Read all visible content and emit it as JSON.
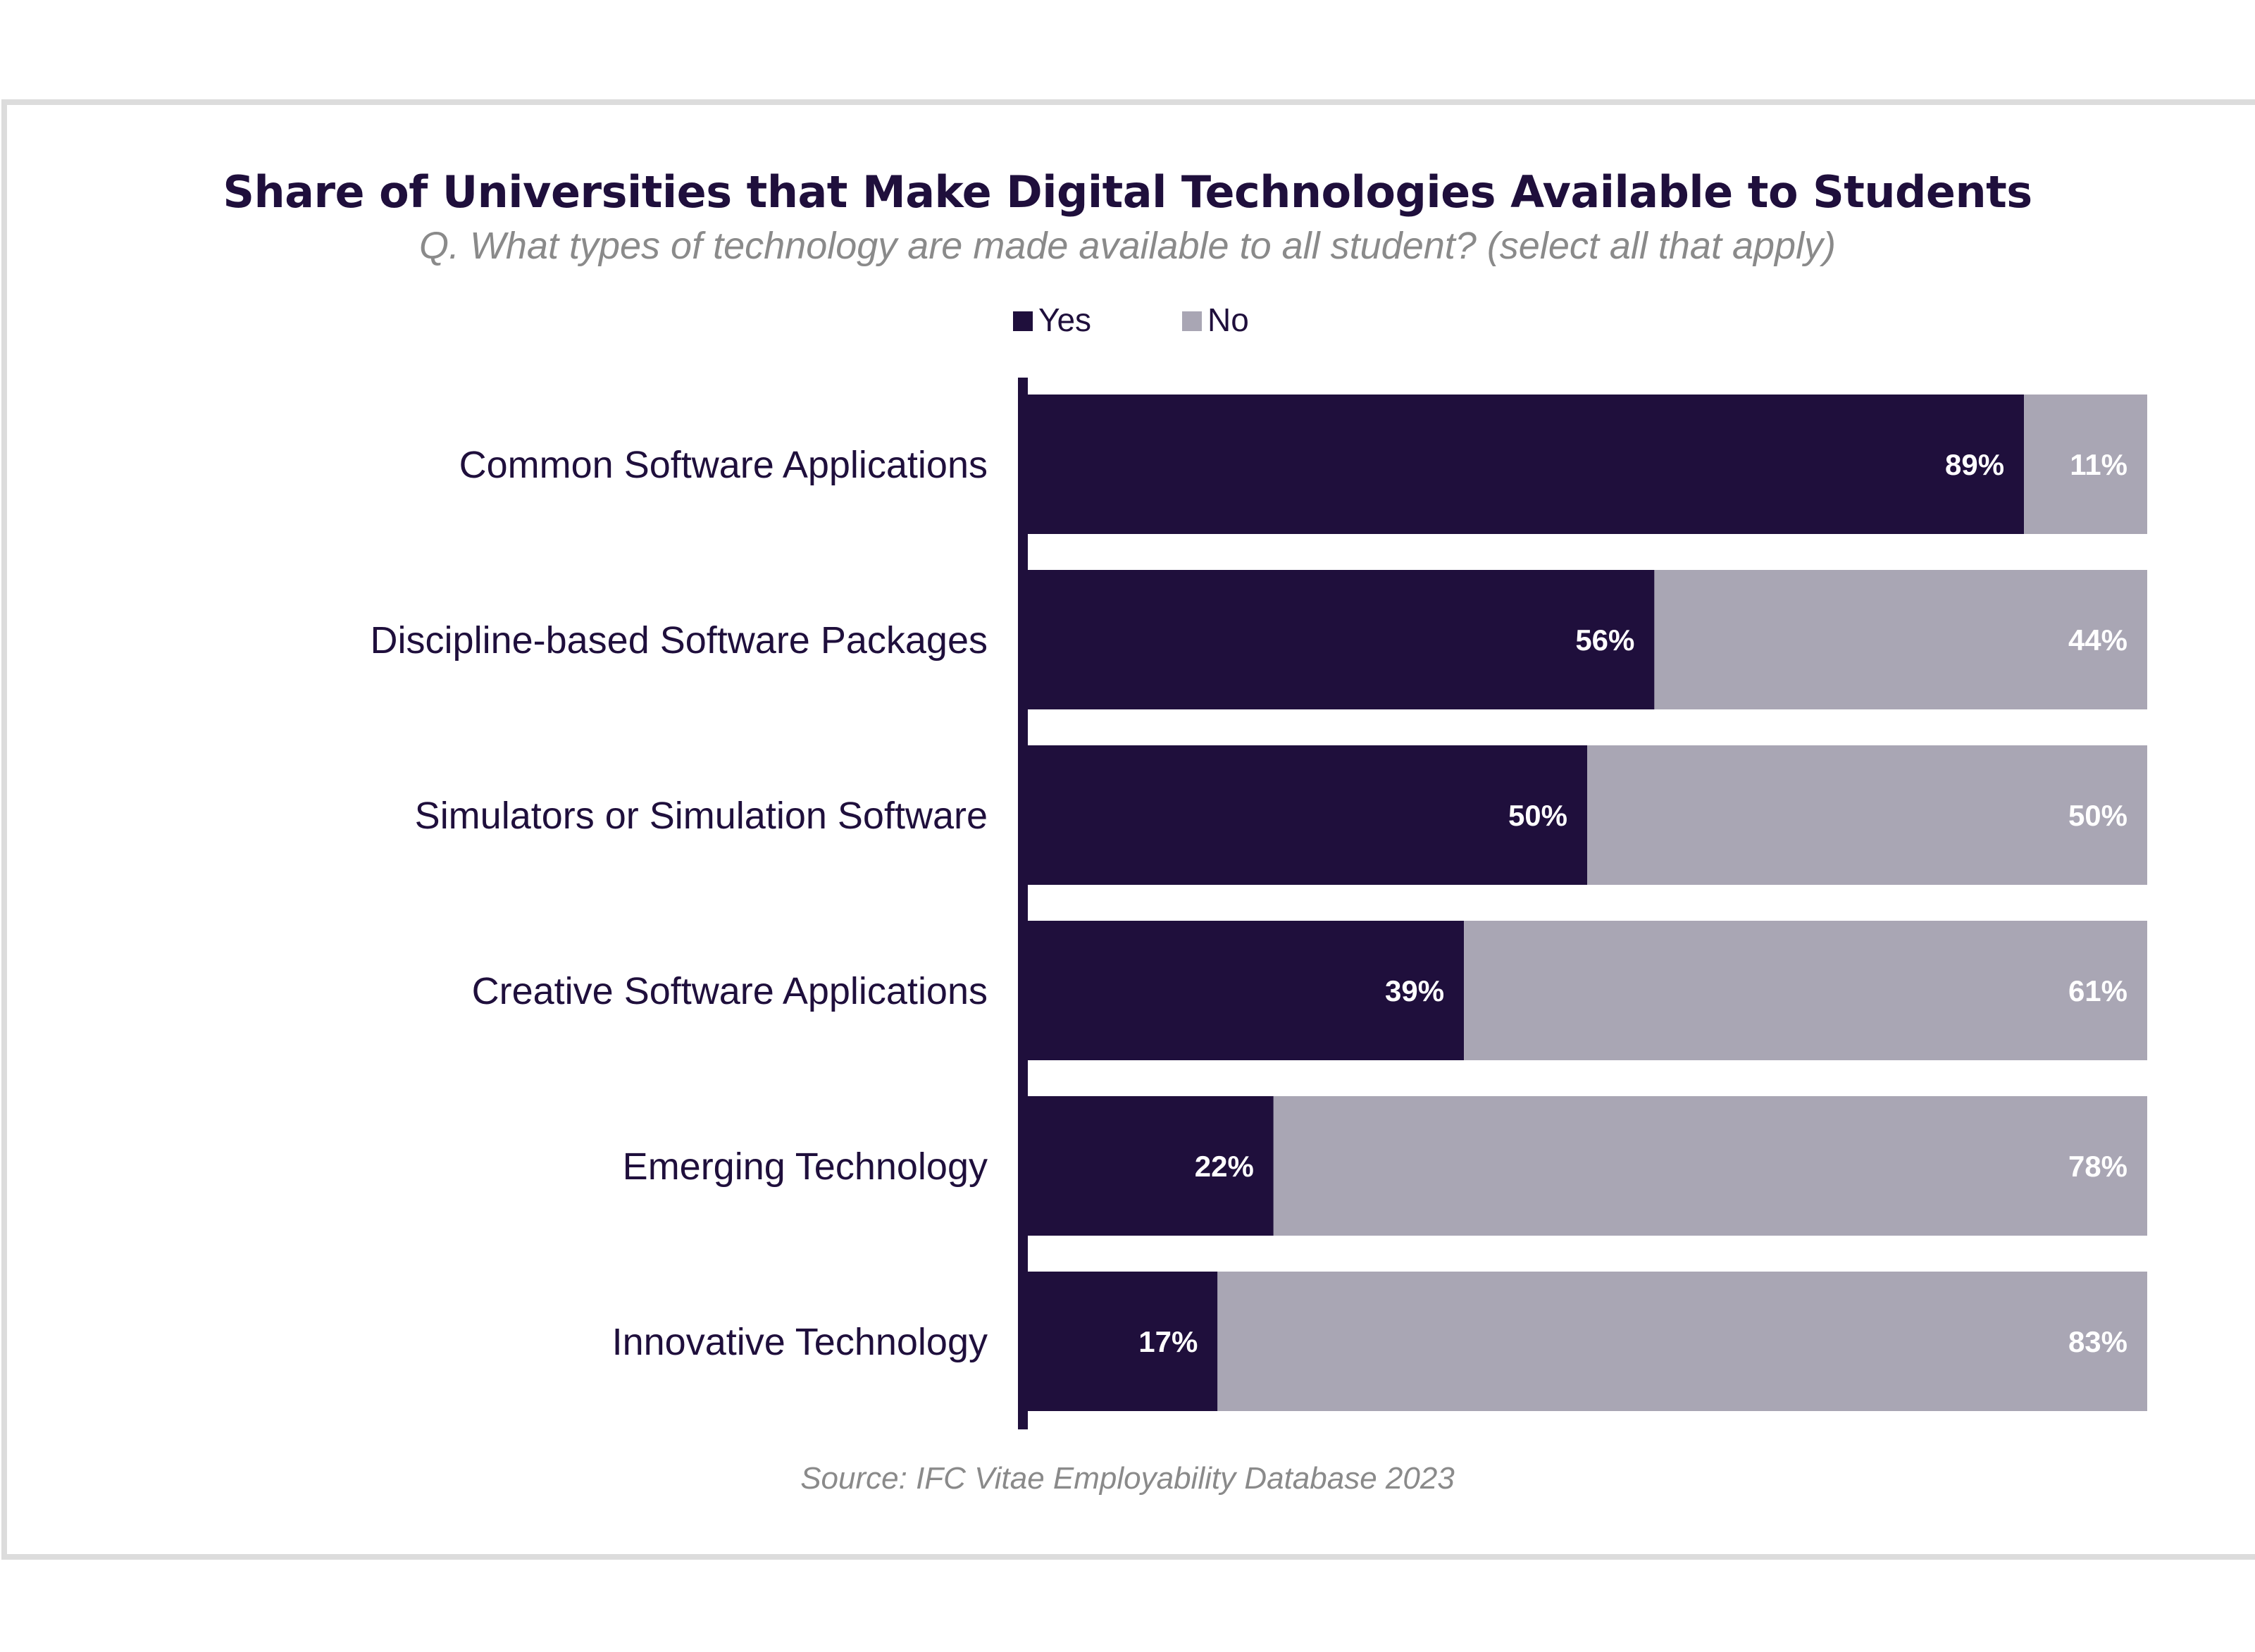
{
  "chart_data": {
    "type": "bar",
    "orientation": "horizontal",
    "stacked": true,
    "title": "Share of Universities that Make Digital Technologies Available to Students",
    "subtitle": "Q. What types of technology are made available to all student? (select all that apply)",
    "source": "Source: IFC Vitae Employability Database 2023",
    "categories": [
      "Common Software Applications",
      "Discipline-based Software Packages",
      "Simulators or Simulation Software",
      "Creative Software Applications",
      "Emerging Technology",
      "Innovative Technology"
    ],
    "series": [
      {
        "name": "Yes",
        "color": "#1f0f3c",
        "values": [
          89,
          56,
          50,
          39,
          22,
          17
        ],
        "labels": [
          "89%",
          "56%",
          "50%",
          "39%",
          "22%",
          "17%"
        ]
      },
      {
        "name": "No",
        "color": "#a9a6b4",
        "values": [
          11,
          44,
          50,
          61,
          78,
          83
        ],
        "labels": [
          "11%",
          "44%",
          "50%",
          "61%",
          "78%",
          "83%"
        ]
      }
    ],
    "xlim": [
      0,
      100
    ],
    "grid": false,
    "legend": "top-center"
  }
}
